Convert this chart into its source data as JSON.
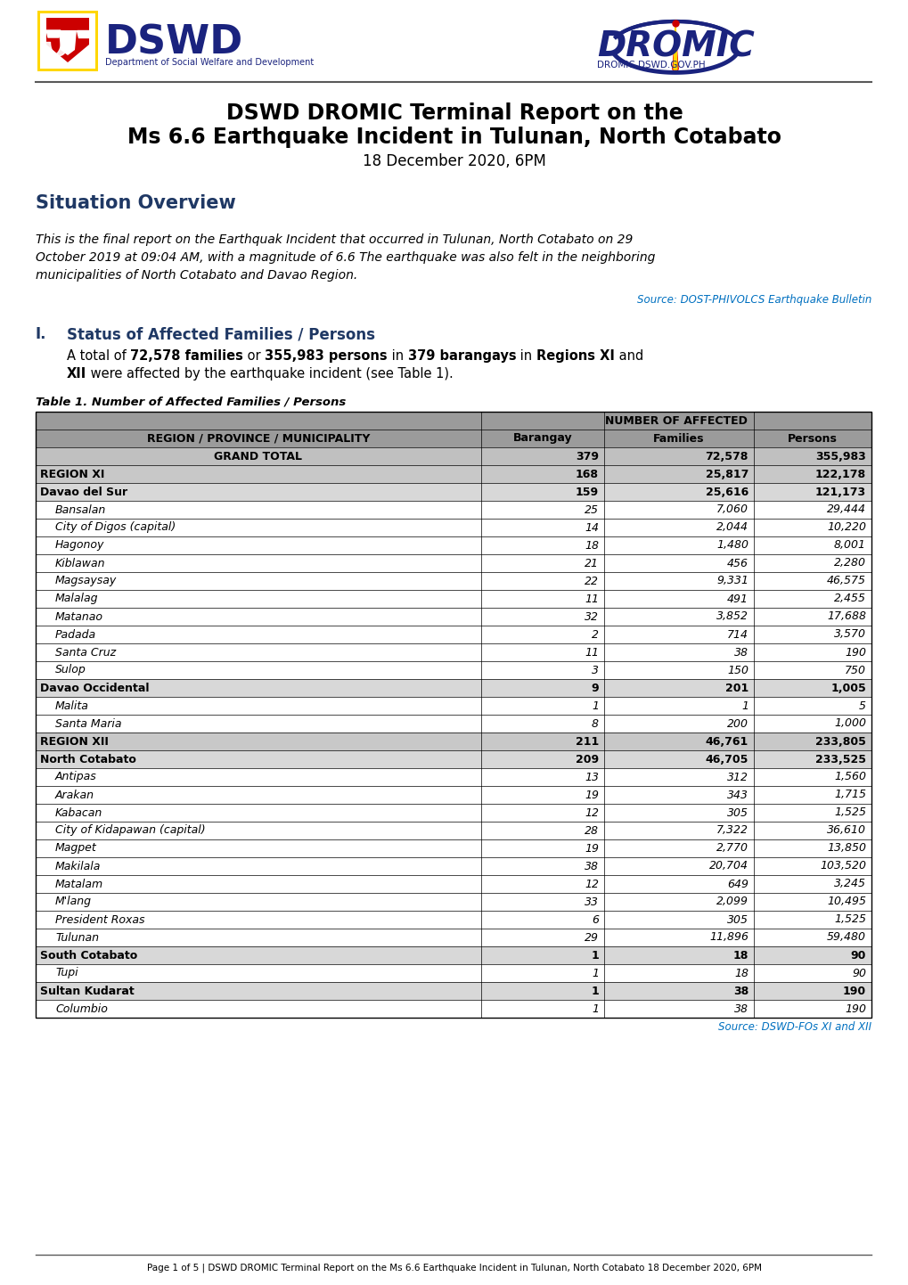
{
  "title_line1": "DSWD DROMIC Terminal Report on the",
  "title_line2": "Ms 6.6 Earthquake Incident in Tulunan, North Cotabato",
  "title_line3": "18 December 2020, 6PM",
  "situation_overview_heading": "Situation Overview",
  "situation_overview_text_line1": "This is the final report on the Earthquak Incident that occurred in Tulunan, North Cotabato on 29",
  "situation_overview_text_line2": "October 2019 at 09:04 AM, with a magnitude of 6.6 The earthquake was also felt in the neighboring",
  "situation_overview_text_line3": "municipalities of North Cotabato and Davao Region.",
  "source_phivolcs": "Source: DOST-PHIVOLCS Earthquake Bulletin",
  "section_num": "I.",
  "section_heading": "Status of Affected Families / Persons",
  "table_title": "Table 1. Number of Affected Families / Persons",
  "table_superheader": "NUMBER OF AFFECTED",
  "table_col0": "REGION / PROVINCE / MUNICIPALITY",
  "table_col1": "Barangay",
  "table_col2": "Families",
  "table_col3": "Persons",
  "table_rows": [
    {
      "label": "GRAND TOTAL",
      "barangay": "379",
      "families": "72,578",
      "persons": "355,983",
      "level": "grand_total"
    },
    {
      "label": "REGION XI",
      "barangay": "168",
      "families": "25,817",
      "persons": "122,178",
      "level": "region"
    },
    {
      "label": "Davao del Sur",
      "barangay": "159",
      "families": "25,616",
      "persons": "121,173",
      "level": "province"
    },
    {
      "label": "Bansalan",
      "barangay": "25",
      "families": "7,060",
      "persons": "29,444",
      "level": "municipality"
    },
    {
      "label": "City of Digos (capital)",
      "barangay": "14",
      "families": "2,044",
      "persons": "10,220",
      "level": "municipality"
    },
    {
      "label": "Hagonoy",
      "barangay": "18",
      "families": "1,480",
      "persons": "8,001",
      "level": "municipality"
    },
    {
      "label": "Kiblawan",
      "barangay": "21",
      "families": "456",
      "persons": "2,280",
      "level": "municipality"
    },
    {
      "label": "Magsaysay",
      "barangay": "22",
      "families": "9,331",
      "persons": "46,575",
      "level": "municipality"
    },
    {
      "label": "Malalag",
      "barangay": "11",
      "families": "491",
      "persons": "2,455",
      "level": "municipality"
    },
    {
      "label": "Matanao",
      "barangay": "32",
      "families": "3,852",
      "persons": "17,688",
      "level": "municipality"
    },
    {
      "label": "Padada",
      "barangay": "2",
      "families": "714",
      "persons": "3,570",
      "level": "municipality"
    },
    {
      "label": "Santa Cruz",
      "barangay": "11",
      "families": "38",
      "persons": "190",
      "level": "municipality"
    },
    {
      "label": "Sulop",
      "barangay": "3",
      "families": "150",
      "persons": "750",
      "level": "municipality"
    },
    {
      "label": "Davao Occidental",
      "barangay": "9",
      "families": "201",
      "persons": "1,005",
      "level": "province"
    },
    {
      "label": "Malita",
      "barangay": "1",
      "families": "1",
      "persons": "5",
      "level": "municipality"
    },
    {
      "label": "Santa Maria",
      "barangay": "8",
      "families": "200",
      "persons": "1,000",
      "level": "municipality"
    },
    {
      "label": "REGION XII",
      "barangay": "211",
      "families": "46,761",
      "persons": "233,805",
      "level": "region"
    },
    {
      "label": "North Cotabato",
      "barangay": "209",
      "families": "46,705",
      "persons": "233,525",
      "level": "province"
    },
    {
      "label": "Antipas",
      "barangay": "13",
      "families": "312",
      "persons": "1,560",
      "level": "municipality"
    },
    {
      "label": "Arakan",
      "barangay": "19",
      "families": "343",
      "persons": "1,715",
      "level": "municipality"
    },
    {
      "label": "Kabacan",
      "barangay": "12",
      "families": "305",
      "persons": "1,525",
      "level": "municipality"
    },
    {
      "label": "City of Kidapawan (capital)",
      "barangay": "28",
      "families": "7,322",
      "persons": "36,610",
      "level": "municipality"
    },
    {
      "label": "Magpet",
      "barangay": "19",
      "families": "2,770",
      "persons": "13,850",
      "level": "municipality"
    },
    {
      "label": "Makilala",
      "barangay": "38",
      "families": "20,704",
      "persons": "103,520",
      "level": "municipality"
    },
    {
      "label": "Matalam",
      "barangay": "12",
      "families": "649",
      "persons": "3,245",
      "level": "municipality"
    },
    {
      "label": "M'lang",
      "barangay": "33",
      "families": "2,099",
      "persons": "10,495",
      "level": "municipality"
    },
    {
      "label": "President Roxas",
      "barangay": "6",
      "families": "305",
      "persons": "1,525",
      "level": "municipality"
    },
    {
      "label": "Tulunan",
      "barangay": "29",
      "families": "11,896",
      "persons": "59,480",
      "level": "municipality"
    },
    {
      "label": "South Cotabato",
      "barangay": "1",
      "families": "18",
      "persons": "90",
      "level": "province"
    },
    {
      "label": "Tupi",
      "barangay": "1",
      "families": "18",
      "persons": "90",
      "level": "municipality"
    },
    {
      "label": "Sultan Kudarat",
      "barangay": "1",
      "families": "38",
      "persons": "190",
      "level": "province"
    },
    {
      "label": "Columbio",
      "barangay": "1",
      "families": "38",
      "persons": "190",
      "level": "municipality"
    }
  ],
  "source_dswd": "Source: DSWD-FOs XI and XII",
  "footer_text": "Page 1 of 5 | DSWD DROMIC Terminal Report on the Ms 6.6 Earthquake Incident in Tulunan, North Cotabato 18 December 2020, 6PM",
  "colors": {
    "header_bg": "#9b9b9b",
    "grand_total_bg": "#c0c0c0",
    "region_bg": "#c8c8c8",
    "province_bg": "#d8d8d8",
    "blue_heading": "#1f3864",
    "source_blue": "#0070c0",
    "separator_line": "#595959",
    "footer_line": "#595959"
  }
}
